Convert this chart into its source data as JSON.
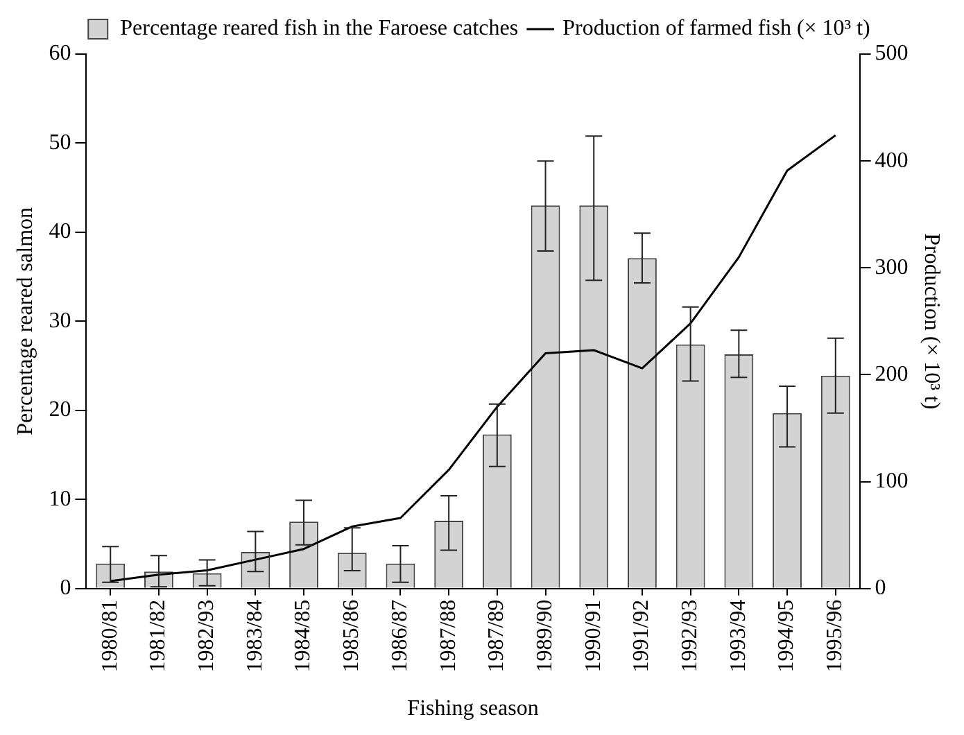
{
  "chart_data": {
    "type": "bar",
    "xlabel": "Fishing season",
    "ylabel": "Percentage reared salmon",
    "y2label": "Production (× 10³ t)",
    "categories": [
      "1980/81",
      "1981/82",
      "1982/93",
      "1983/84",
      "1984/85",
      "1985/86",
      "1986/87",
      "1987/88",
      "1987/89",
      "1989/90",
      "1990/91",
      "1991/92",
      "1992/93",
      "1993/94",
      "1994/95",
      "1995/96"
    ],
    "series": [
      {
        "name": "Percentage reared fish in the Faroese catches",
        "color": "#d3d3d3",
        "values": [
          2.8,
          1.9,
          1.7,
          4.1,
          7.5,
          4.0,
          2.8,
          7.6,
          17.3,
          43.0,
          43.0,
          37.1,
          27.4,
          26.3,
          19.7,
          23.9
        ],
        "errors": [
          [
            0.7,
            4.7
          ],
          [
            0.2,
            3.7
          ],
          [
            0.3,
            3.2
          ],
          [
            1.9,
            6.4
          ],
          [
            4.9,
            9.9
          ],
          [
            2.0,
            6.8
          ],
          [
            0.7,
            4.8
          ],
          [
            4.3,
            10.4
          ],
          [
            13.7,
            20.7
          ],
          [
            37.9,
            48.0
          ],
          [
            34.6,
            50.8
          ],
          [
            34.3,
            39.9
          ],
          [
            23.3,
            31.6
          ],
          [
            23.7,
            29.0
          ],
          [
            15.9,
            22.7
          ],
          [
            19.7,
            28.1
          ]
        ]
      },
      {
        "name": "Production of farmed fish (× 10³ t)",
        "type": "line",
        "axis": "y2",
        "color": "#000000",
        "values": [
          7,
          13,
          17,
          27,
          37,
          58,
          66,
          111,
          170,
          220,
          223,
          206,
          248,
          310,
          391,
          424
        ]
      }
    ],
    "ylim": [
      0,
      60
    ],
    "yticks": [
      0,
      10,
      20,
      30,
      40,
      50,
      60
    ],
    "y2lim": [
      0,
      500
    ],
    "y2ticks": [
      0,
      100,
      200,
      300,
      400,
      500
    ],
    "grid": false,
    "legend": "top",
    "marker": "none",
    "line_style": "solid"
  }
}
